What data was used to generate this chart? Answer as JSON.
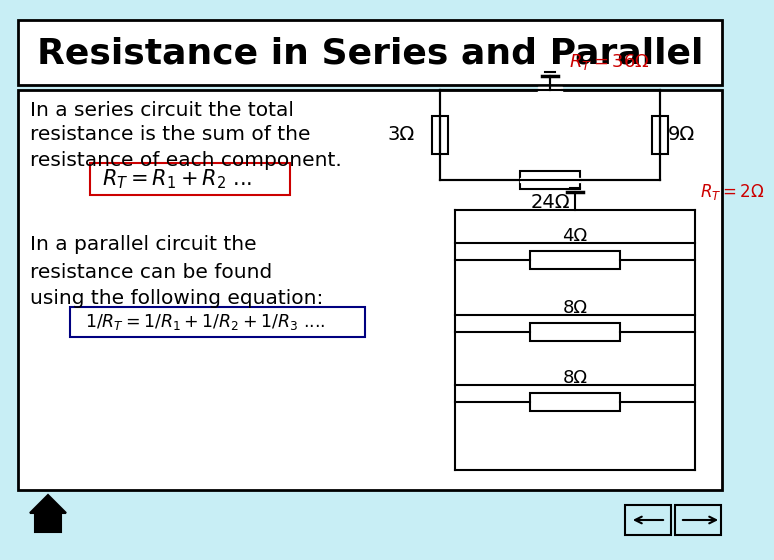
{
  "title": "Resistance in Series and Parallel",
  "title_fontsize": 26,
  "body_fontsize": 14.5,
  "formula_fontsize": 15,
  "bg_color": "#c8eef5",
  "title_bg": "#ffffff",
  "content_bg": "#ffffff",
  "text_color": "#000000",
  "red_color": "#cc0000",
  "line1": "In a series circuit the total",
  "line2": "resistance is the sum of the",
  "line3": "resistance of each component.",
  "parallel_line1": "In a parallel circuit the",
  "parallel_line2": "resistance can be found",
  "parallel_line3": "using the following equation:",
  "omega_3": "3Ω",
  "omega_9": "9Ω",
  "omega_24": "24Ω",
  "omega_4": "4Ω",
  "omega_8a": "8Ω",
  "omega_8b": "8Ω",
  "rt_series_label": "R_T = 36Ω",
  "rt_parallel_label": "R_T = 2Ω"
}
